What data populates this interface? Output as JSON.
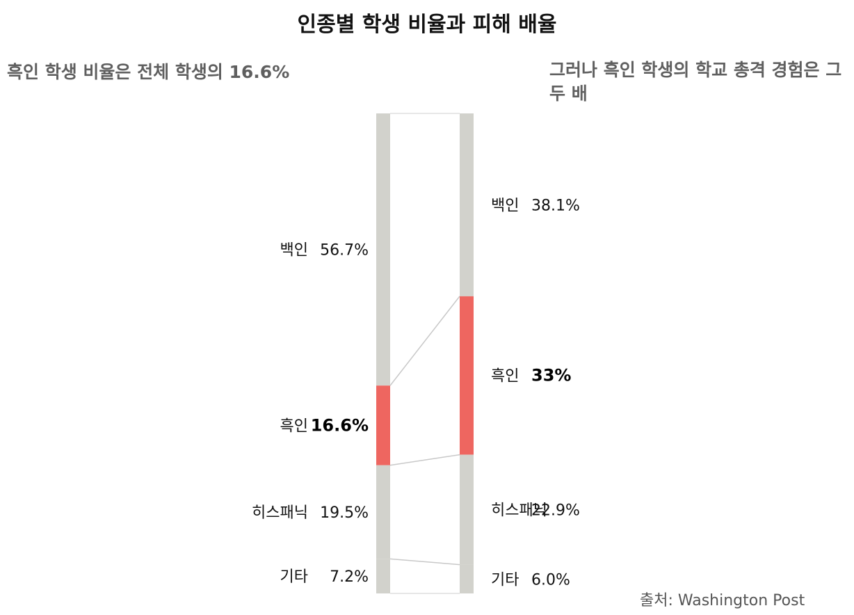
{
  "title": "인종별 학생 비율과 피해 배율",
  "subtitle_left": "흑인 학생 비율은 전체 학생의 16.6%",
  "subtitle_right": "그러나 흑인 학생의 학교 총격 경험은 그 두 배",
  "source": "출처: Washington Post",
  "colors": {
    "bar_gray": "#d2d2cc",
    "highlight": "#ee6660",
    "connector": "#c8c8c8",
    "frame": "#cfcfcf"
  },
  "chart_data": {
    "type": "stacked-bar",
    "bars": [
      {
        "segments": [
          {
            "label": "백인",
            "value": 56.7,
            "display": "56.7%",
            "highlight": false
          },
          {
            "label": "흑인",
            "value": 16.6,
            "display": "16.6%",
            "highlight": true
          },
          {
            "label": "히스패닉",
            "value": 19.5,
            "display": "19.5%",
            "highlight": false
          },
          {
            "label": "기타",
            "value": 7.2,
            "display": "7.2%",
            "highlight": false
          }
        ]
      },
      {
        "segments": [
          {
            "label": "백인",
            "value": 38.1,
            "display": "38.1%",
            "highlight": false
          },
          {
            "label": "흑인",
            "value": 33,
            "display": "33%",
            "highlight": true
          },
          {
            "label": "히스패닉",
            "value": 22.9,
            "display": "22.9%",
            "highlight": false
          },
          {
            "label": "기타",
            "value": 6.0,
            "display": "6.0%",
            "highlight": false
          }
        ]
      }
    ]
  }
}
